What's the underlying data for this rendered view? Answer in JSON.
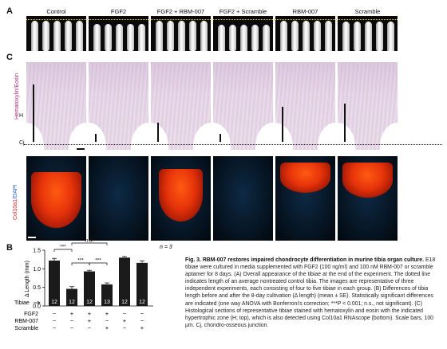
{
  "panel_labels": {
    "a": "A",
    "b": "B",
    "c": "C"
  },
  "groups": [
    "Control",
    "FGF2",
    "FGF2 + RBM-007",
    "FGF2 + Scramble",
    "RBM-007",
    "Scramble"
  ],
  "stain_labels": {
    "he": "Hematoxylin/Eosin",
    "col": "Col10a1",
    "dapi": "/DAPI"
  },
  "he_marks": {
    "h": "H",
    "cj": "Cj"
  },
  "chart_data": {
    "type": "bar",
    "ylabel": "Δ Length (mm)",
    "ylim": [
      0,
      1.5
    ],
    "yticks": [
      "0.0",
      "0.5",
      "1.0",
      "1.5"
    ],
    "values": [
      1.22,
      0.46,
      0.93,
      0.58,
      1.3,
      1.16
    ],
    "errors": [
      0.06,
      0.06,
      0.03,
      0.04,
      0.03,
      0.05
    ],
    "n_labels": [
      "12",
      "12",
      "12",
      "13",
      "12",
      "12"
    ],
    "n_note": "n = 3",
    "tibiae_label": "Tibiae",
    "treatment_rows": [
      {
        "label": "FGF2",
        "signs": [
          "−",
          "+",
          "+",
          "+",
          "−",
          "−"
        ]
      },
      {
        "label": "RBM-007",
        "signs": [
          "−",
          "−",
          "+",
          "−",
          "+",
          "−"
        ]
      },
      {
        "label": "Scramble",
        "signs": [
          "−",
          "−",
          "−",
          "+",
          "−",
          "+"
        ]
      }
    ],
    "significance": [
      "***",
      "n.s.",
      "***",
      "***"
    ]
  },
  "caption": {
    "title": "Fig. 3. RBM-007 restores impaired chondrocyte differentiation in murine tibia organ culture.",
    "body": "E18 tibiae were cultured in media supplemented with FGF2 (100 ng/ml) and 100 nM RBM-007 or scramble aptamer for 8 days. (A) Overall appearance of the tibiae at the end of the experiment. The dotted line indicates length of an average nontreated control tibia. The images are representative of three independent experiments, each consisting of four to five tibiae in each group. (B) Differences of tibia length before and after the 8-day cultivation (Δ length) (mean ± SE). Statistically significant differences are indicated (one way ANOVA with Bonferroni's correction; ***P < 0.001; n.s., not significant). (C) Histological sections of representative tibiae stained with hematoxylin and eosin with the indicated hypertrophic zone (H; top), which is also detected using Col10a1 RNAscope (bottom). Scale bars, 100 μm. Cj, chondro-osseous junction."
  }
}
